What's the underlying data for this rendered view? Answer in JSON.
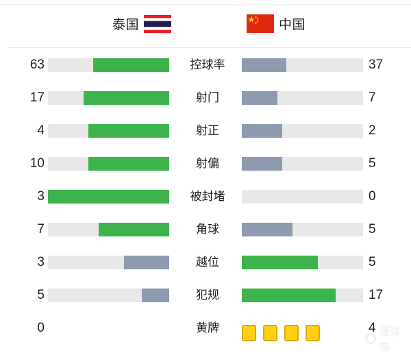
{
  "header": {
    "home_team": "泰国",
    "away_team": "中国"
  },
  "colors": {
    "green": "#3db44b",
    "slate": "#8e9bae",
    "track": "#e8e8e8",
    "card_fill": "#ffd012",
    "card_border": "#e2a607",
    "thai_red": "#ed1c24",
    "thai_navy": "#241d4f",
    "china_red": "#de2910",
    "china_star": "#ffde00"
  },
  "rows": [
    {
      "type": "bars",
      "label": "控球率",
      "home_value": "63",
      "away_value": "37",
      "home_pct": 63,
      "away_pct": 37,
      "home_color": "green",
      "away_color": "slate"
    },
    {
      "type": "bars",
      "label": "射门",
      "home_value": "17",
      "away_value": "7",
      "home_pct": 70.8,
      "away_pct": 29.2,
      "home_color": "green",
      "away_color": "slate"
    },
    {
      "type": "bars",
      "label": "射正",
      "home_value": "4",
      "away_value": "2",
      "home_pct": 66.7,
      "away_pct": 33.3,
      "home_color": "green",
      "away_color": "slate"
    },
    {
      "type": "bars",
      "label": "射偏",
      "home_value": "10",
      "away_value": "5",
      "home_pct": 66.7,
      "away_pct": 33.3,
      "home_color": "green",
      "away_color": "slate"
    },
    {
      "type": "bars",
      "label": "被封堵",
      "home_value": "3",
      "away_value": "0",
      "home_pct": 100,
      "away_pct": 0,
      "home_color": "green",
      "away_color": "slate"
    },
    {
      "type": "bars",
      "label": "角球",
      "home_value": "7",
      "away_value": "5",
      "home_pct": 58.3,
      "away_pct": 41.7,
      "home_color": "green",
      "away_color": "slate"
    },
    {
      "type": "bars",
      "label": "越位",
      "home_value": "3",
      "away_value": "5",
      "home_pct": 37.5,
      "away_pct": 62.5,
      "home_color": "slate",
      "away_color": "green"
    },
    {
      "type": "bars",
      "label": "犯规",
      "home_value": "5",
      "away_value": "17",
      "home_pct": 22.7,
      "away_pct": 77.3,
      "home_color": "slate",
      "away_color": "green"
    },
    {
      "type": "cards",
      "label": "黄牌",
      "home_value": "0",
      "away_value": "4",
      "home_cards": 0,
      "away_cards": 4
    }
  ],
  "watermark": {
    "text": "懂球帝"
  },
  "chart_data": {
    "type": "bar",
    "orientation": "horizontal-paired",
    "title": "泰国 vs 中国 比赛数据",
    "categories": [
      "控球率",
      "射门",
      "射正",
      "射偏",
      "被封堵",
      "角球",
      "越位",
      "犯规",
      "黄牌"
    ],
    "series": [
      {
        "name": "泰国",
        "values": [
          63,
          17,
          4,
          10,
          3,
          7,
          3,
          5,
          0
        ]
      },
      {
        "name": "中国",
        "values": [
          37,
          7,
          2,
          5,
          0,
          5,
          5,
          17,
          4
        ]
      }
    ],
    "legend_position": "top",
    "grid": false,
    "notes": "Each bar pair fills proportionally to value/(home+away); higher value is green (#3db44b), lower is slate (#8e9bae); 黄牌 row rendered as 4 yellow card icons instead of bars"
  }
}
